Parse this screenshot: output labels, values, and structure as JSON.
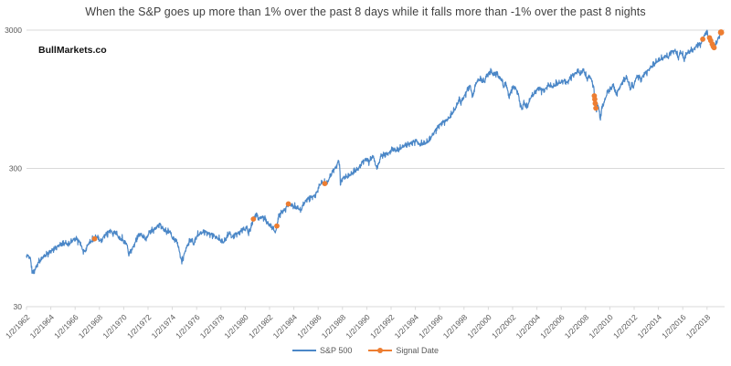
{
  "title": {
    "text": "When the S&P goes up more than 1% over the past 8 days while it falls more than -1% over the past 8 nights"
  },
  "watermark": {
    "text": "BullMarkets.co"
  },
  "legend": {
    "position": "bottom-center",
    "items": [
      {
        "label": "S&P 500",
        "color": "#4b87c7",
        "marker": "line"
      },
      {
        "label": "Signal Date",
        "color": "#ED7D31",
        "marker": "line-dot"
      }
    ]
  },
  "chart_data": {
    "type": "line",
    "title": "When the S&P goes up more than 1% over the past 8 days while it falls more than -1% over the past 8 nights",
    "xlabel": "",
    "ylabel": "",
    "grid": "horizontal-only",
    "y_axis": {
      "scale": "log",
      "tick_labels": [
        "30",
        "300",
        "3000"
      ],
      "tick_values": [
        30,
        300,
        3000
      ],
      "range": [
        30,
        3000
      ]
    },
    "x_axis": {
      "tick_labels": [
        "1/2/1962",
        "1/2/1964",
        "1/2/1966",
        "1/2/1968",
        "1/2/1970",
        "1/2/1972",
        "1/2/1974",
        "1/2/1976",
        "1/2/1978",
        "1/2/1980",
        "1/2/1982",
        "1/2/1984",
        "1/2/1986",
        "1/2/1988",
        "1/2/1990",
        "1/2/1992",
        "1/2/1994",
        "1/2/1996",
        "1/2/1998",
        "1/2/2000",
        "1/2/2002",
        "1/2/2004",
        "1/2/2006",
        "1/2/2008",
        "1/2/2010",
        "1/2/2012",
        "1/2/2014",
        "1/2/2016",
        "1/2/2018"
      ],
      "tick_years": [
        1962,
        1964,
        1966,
        1968,
        1970,
        1972,
        1974,
        1976,
        1978,
        1980,
        1982,
        1984,
        1986,
        1988,
        1990,
        1992,
        1994,
        1996,
        1998,
        2000,
        2002,
        2004,
        2006,
        2008,
        2010,
        2012,
        2014,
        2016,
        2018
      ],
      "range_years": [
        1962,
        2019.2
      ],
      "label_rotation_deg": -45
    },
    "series": [
      {
        "name": "S&P 500",
        "color": "#4b87c7",
        "anchors": [
          [
            1962.0,
            71
          ],
          [
            1962.15,
            69.5
          ],
          [
            1962.3,
            68
          ],
          [
            1962.45,
            55
          ],
          [
            1962.55,
            52.5
          ],
          [
            1962.8,
            58
          ],
          [
            1963.0,
            63
          ],
          [
            1963.4,
            69
          ],
          [
            1963.8,
            73
          ],
          [
            1964.3,
            79
          ],
          [
            1964.8,
            84.5
          ],
          [
            1965.2,
            87
          ],
          [
            1965.45,
            84
          ],
          [
            1965.8,
            91
          ],
          [
            1966.1,
            93
          ],
          [
            1966.45,
            86
          ],
          [
            1966.6,
            77.5
          ],
          [
            1966.8,
            74.5
          ],
          [
            1967.1,
            86
          ],
          [
            1967.35,
            90
          ],
          [
            1967.6,
            93
          ],
          [
            1967.75,
            97
          ],
          [
            1967.95,
            93
          ],
          [
            1968.15,
            88.5
          ],
          [
            1968.4,
            98
          ],
          [
            1968.7,
            102
          ],
          [
            1968.9,
            107
          ],
          [
            1969.1,
            101
          ],
          [
            1969.35,
            104
          ],
          [
            1969.6,
            94
          ],
          [
            1969.9,
            92
          ],
          [
            1970.1,
            87
          ],
          [
            1970.25,
            86
          ],
          [
            1970.42,
            71
          ],
          [
            1970.6,
            76
          ],
          [
            1970.85,
            83
          ],
          [
            1971.1,
            95
          ],
          [
            1971.35,
            101
          ],
          [
            1971.6,
            96
          ],
          [
            1971.85,
            92
          ],
          [
            1972.1,
            104
          ],
          [
            1972.5,
            108
          ],
          [
            1972.95,
            118.5
          ],
          [
            1973.3,
            108
          ],
          [
            1973.6,
            104
          ],
          [
            1973.8,
            106
          ],
          [
            1974.0,
            94
          ],
          [
            1974.2,
            92
          ],
          [
            1974.4,
            88
          ],
          [
            1974.6,
            74
          ],
          [
            1974.78,
            63
          ],
          [
            1974.95,
            70
          ],
          [
            1975.1,
            78
          ],
          [
            1975.4,
            89
          ],
          [
            1975.6,
            92
          ],
          [
            1975.75,
            84
          ],
          [
            1976.0,
            97
          ],
          [
            1976.3,
            102
          ],
          [
            1976.65,
            104.5
          ],
          [
            1977.0,
            101
          ],
          [
            1977.4,
            98
          ],
          [
            1977.8,
            93
          ],
          [
            1978.2,
            87.5
          ],
          [
            1978.5,
            96
          ],
          [
            1978.7,
            104
          ],
          [
            1978.9,
            95
          ],
          [
            1979.2,
            100
          ],
          [
            1979.55,
            103
          ],
          [
            1979.8,
            110
          ],
          [
            1980.0,
            108
          ],
          [
            1980.15,
            114
          ],
          [
            1980.25,
            100
          ],
          [
            1980.5,
            115
          ],
          [
            1980.67,
            129
          ],
          [
            1980.9,
            140
          ],
          [
            1981.1,
            130
          ],
          [
            1981.35,
            133
          ],
          [
            1981.6,
            131
          ],
          [
            1981.85,
            120
          ],
          [
            1982.05,
            116
          ],
          [
            1982.3,
            110
          ],
          [
            1982.5,
            103
          ],
          [
            1982.6,
            115
          ],
          [
            1982.75,
            135
          ],
          [
            1983.0,
            145
          ],
          [
            1983.3,
            152
          ],
          [
            1983.55,
            166
          ],
          [
            1983.8,
            163
          ],
          [
            1984.1,
            157
          ],
          [
            1984.35,
            156
          ],
          [
            1984.55,
            148
          ],
          [
            1984.8,
            166
          ],
          [
            1985.1,
            180
          ],
          [
            1985.45,
            185
          ],
          [
            1985.8,
            192
          ],
          [
            1986.1,
            226
          ],
          [
            1986.3,
            238
          ],
          [
            1986.55,
            233
          ],
          [
            1986.75,
            236
          ],
          [
            1987.0,
            264
          ],
          [
            1987.25,
            292
          ],
          [
            1987.5,
            309
          ],
          [
            1987.65,
            335
          ],
          [
            1987.76,
            315
          ],
          [
            1987.8,
            283
          ],
          [
            1987.83,
            225
          ],
          [
            1987.9,
            245
          ],
          [
            1988.1,
            258
          ],
          [
            1988.4,
            262
          ],
          [
            1988.7,
            272
          ],
          [
            1989.0,
            288
          ],
          [
            1989.3,
            297
          ],
          [
            1989.6,
            330
          ],
          [
            1989.95,
            350
          ],
          [
            1990.2,
            335
          ],
          [
            1990.45,
            365
          ],
          [
            1990.6,
            358
          ],
          [
            1990.78,
            300
          ],
          [
            1991.0,
            325
          ],
          [
            1991.15,
            370
          ],
          [
            1991.5,
            378
          ],
          [
            1991.85,
            387
          ],
          [
            1992.1,
            415
          ],
          [
            1992.4,
            405
          ],
          [
            1992.7,
            415
          ],
          [
            1993.0,
            435
          ],
          [
            1993.4,
            448
          ],
          [
            1993.8,
            462
          ],
          [
            1994.1,
            478
          ],
          [
            1994.3,
            445
          ],
          [
            1994.6,
            455
          ],
          [
            1994.9,
            460
          ],
          [
            1995.2,
            490
          ],
          [
            1995.6,
            555
          ],
          [
            1996.0,
            620
          ],
          [
            1996.3,
            650
          ],
          [
            1996.55,
            665
          ],
          [
            1996.8,
            700
          ],
          [
            1997.1,
            770
          ],
          [
            1997.35,
            830
          ],
          [
            1997.55,
            930
          ],
          [
            1997.63,
            950
          ],
          [
            1997.73,
            880
          ],
          [
            1997.85,
            945
          ],
          [
            1998.0,
            980
          ],
          [
            1998.25,
            1100
          ],
          [
            1998.5,
            1190
          ],
          [
            1998.62,
            1080
          ],
          [
            1998.7,
            970
          ],
          [
            1998.85,
            1120
          ],
          [
            1999.05,
            1275
          ],
          [
            1999.3,
            1330
          ],
          [
            1999.5,
            1300
          ],
          [
            1999.7,
            1270
          ],
          [
            1999.85,
            1410
          ],
          [
            2000.0,
            1440
          ],
          [
            2000.22,
            1520
          ],
          [
            2000.42,
            1420
          ],
          [
            2000.68,
            1480
          ],
          [
            2000.9,
            1355
          ],
          [
            2001.1,
            1320
          ],
          [
            2001.25,
            1170
          ],
          [
            2001.45,
            1240
          ],
          [
            2001.72,
            975
          ],
          [
            2001.95,
            1140
          ],
          [
            2002.2,
            1160
          ],
          [
            2002.45,
            1040
          ],
          [
            2002.6,
            900
          ],
          [
            2002.78,
            790
          ],
          [
            2002.9,
            900
          ],
          [
            2003.05,
            860
          ],
          [
            2003.2,
            835
          ],
          [
            2003.5,
            985
          ],
          [
            2003.8,
            1050
          ],
          [
            2004.1,
            1140
          ],
          [
            2004.35,
            1110
          ],
          [
            2004.6,
            1095
          ],
          [
            2004.95,
            1210
          ],
          [
            2005.3,
            1165
          ],
          [
            2005.6,
            1230
          ],
          [
            2005.9,
            1250
          ],
          [
            2006.2,
            1295
          ],
          [
            2006.5,
            1245
          ],
          [
            2006.8,
            1380
          ],
          [
            2007.1,
            1440
          ],
          [
            2007.4,
            1530
          ],
          [
            2007.6,
            1430
          ],
          [
            2007.78,
            1560
          ],
          [
            2007.95,
            1470
          ],
          [
            2008.1,
            1330
          ],
          [
            2008.35,
            1400
          ],
          [
            2008.55,
            1260
          ],
          [
            2008.68,
            1160
          ],
          [
            2008.72,
            1005
          ],
          [
            2008.76,
            950
          ],
          [
            2008.8,
            885
          ],
          [
            2008.85,
            820
          ],
          [
            2008.9,
            750
          ],
          [
            2008.97,
            900
          ],
          [
            2009.1,
            810
          ],
          [
            2009.2,
            677
          ],
          [
            2009.35,
            820
          ],
          [
            2009.6,
            940
          ],
          [
            2009.8,
            1070
          ],
          [
            2010.05,
            1120
          ],
          [
            2010.3,
            1210
          ],
          [
            2010.5,
            1030
          ],
          [
            2010.7,
            1100
          ],
          [
            2010.95,
            1220
          ],
          [
            2011.2,
            1330
          ],
          [
            2011.4,
            1360
          ],
          [
            2011.6,
            1200
          ],
          [
            2011.7,
            1120
          ],
          [
            2011.85,
            1220
          ],
          [
            2011.95,
            1150
          ],
          [
            2012.15,
            1360
          ],
          [
            2012.4,
            1400
          ],
          [
            2012.55,
            1300
          ],
          [
            2012.8,
            1440
          ],
          [
            2013.05,
            1490
          ],
          [
            2013.4,
            1630
          ],
          [
            2013.8,
            1760
          ],
          [
            2014.1,
            1840
          ],
          [
            2014.4,
            1880
          ],
          [
            2014.6,
            1970
          ],
          [
            2014.78,
            1890
          ],
          [
            2015.0,
            2070
          ],
          [
            2015.25,
            2110
          ],
          [
            2015.45,
            2120
          ],
          [
            2015.62,
            1880
          ],
          [
            2015.8,
            2080
          ],
          [
            2015.95,
            2040
          ],
          [
            2016.1,
            1830
          ],
          [
            2016.35,
            2060
          ],
          [
            2016.55,
            2090
          ],
          [
            2016.75,
            2170
          ],
          [
            2016.85,
            2130
          ],
          [
            2017.05,
            2270
          ],
          [
            2017.25,
            2360
          ],
          [
            2017.4,
            2350
          ],
          [
            2017.55,
            2430
          ],
          [
            2017.65,
            2580
          ],
          [
            2017.8,
            2740
          ],
          [
            2017.92,
            2930
          ],
          [
            2018.0,
            2870
          ],
          [
            2018.08,
            2630
          ],
          [
            2018.15,
            2700
          ],
          [
            2018.25,
            2580
          ],
          [
            2018.35,
            2480
          ],
          [
            2018.45,
            2330
          ],
          [
            2018.52,
            2290
          ],
          [
            2018.58,
            2240
          ],
          [
            2018.68,
            2360
          ],
          [
            2018.8,
            2450
          ],
          [
            2018.9,
            2580
          ],
          [
            2019.0,
            2700
          ],
          [
            2019.15,
            2890
          ]
        ]
      }
    ],
    "signals": {
      "name": "Signal Date",
      "color": "#ED7D31",
      "points": [
        [
          1967.6,
          93
        ],
        [
          1980.67,
          129
        ],
        [
          1982.6,
          115
        ],
        [
          1983.55,
          166
        ],
        [
          1986.55,
          233
        ],
        [
          2008.72,
          1005
        ],
        [
          2008.76,
          950
        ],
        [
          2008.8,
          885
        ],
        [
          2008.85,
          818
        ],
        [
          2017.65,
          2580
        ],
        [
          2018.2,
          2640
        ],
        [
          2018.3,
          2520
        ],
        [
          2018.42,
          2380
        ],
        [
          2018.5,
          2290
        ],
        [
          2018.58,
          2240
        ],
        [
          2019.15,
          2890
        ]
      ]
    }
  }
}
